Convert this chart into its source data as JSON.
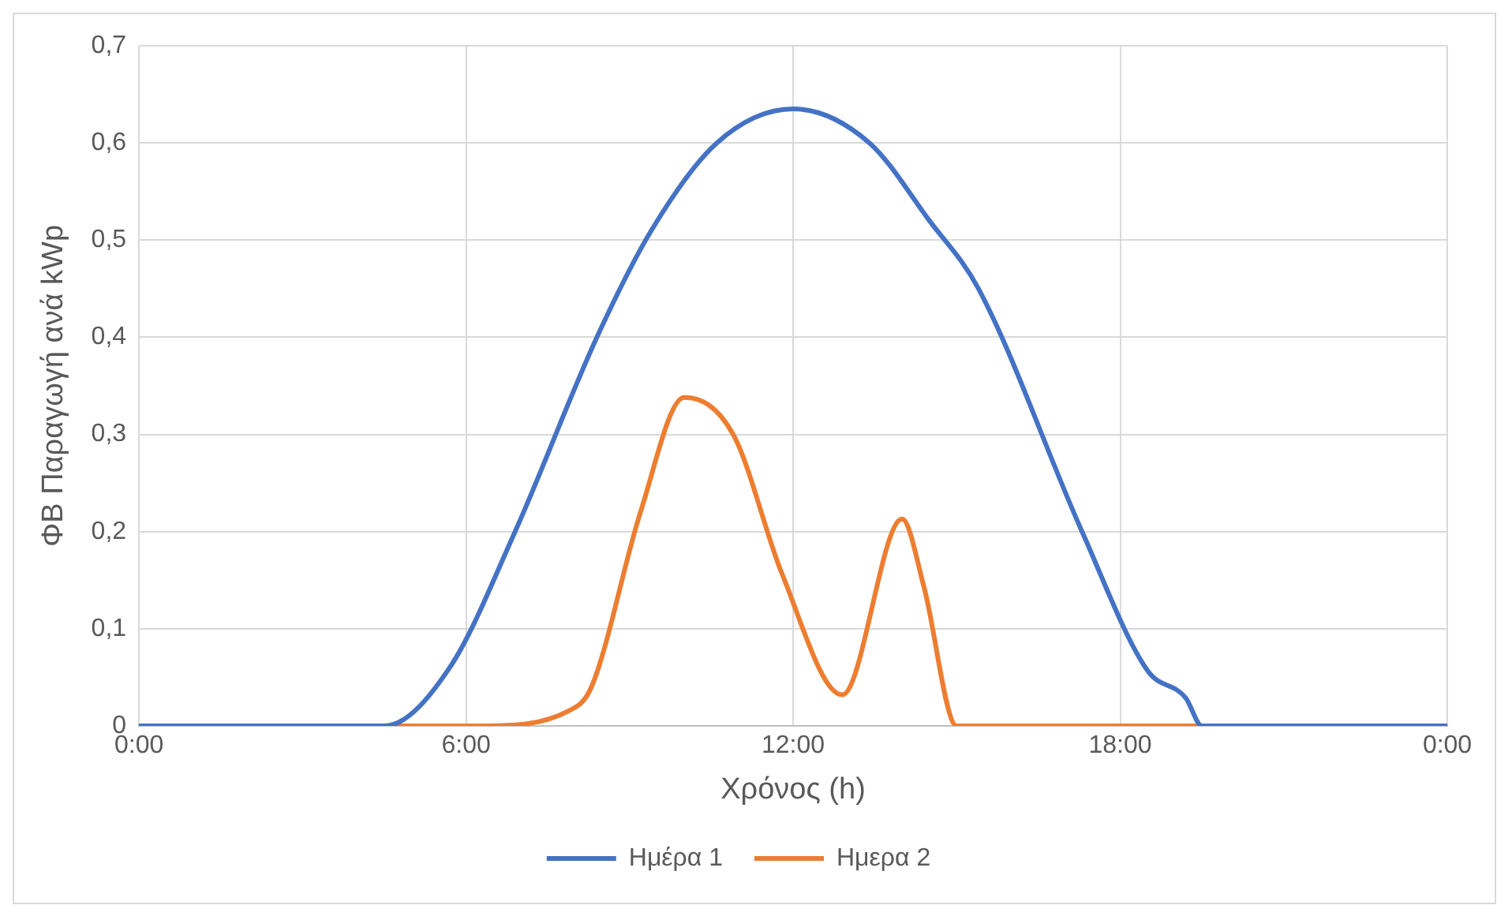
{
  "chart_data": {
    "type": "line",
    "xlabel": "Χρόνος (h)",
    "ylabel": "ΦΒ Παραγωγή ανά kWp",
    "xlim": [
      0,
      24
    ],
    "xticks": [
      {
        "value": 0,
        "label": "0:00"
      },
      {
        "value": 6,
        "label": "6:00"
      },
      {
        "value": 12,
        "label": "12:00"
      },
      {
        "value": 18,
        "label": "18:00"
      },
      {
        "value": 24,
        "label": "0:00"
      }
    ],
    "ylim": [
      0,
      0.7
    ],
    "yticks": [
      {
        "value": 0,
        "label": "0"
      },
      {
        "value": 0.1,
        "label": "0,1"
      },
      {
        "value": 0.2,
        "label": "0,2"
      },
      {
        "value": 0.3,
        "label": "0,3"
      },
      {
        "value": 0.4,
        "label": "0,4"
      },
      {
        "value": 0.5,
        "label": "0,5"
      },
      {
        "value": 0.6,
        "label": "0,6"
      },
      {
        "value": 0.7,
        "label": "0,7"
      }
    ],
    "grid": true,
    "legend": "bottom",
    "marker": "none",
    "line_style": "solid",
    "series": [
      {
        "name": "Ημέρα 1",
        "color": "#4472c4",
        "x": [
          0,
          4.5,
          5.7,
          6.9,
          8.4,
          9.4,
          10.6,
          12,
          13.4,
          14.5,
          15.4,
          17.3,
          18.5,
          19.2,
          19.5,
          24
        ],
        "values": [
          0,
          0,
          0.06,
          0.2,
          0.4,
          0.51,
          0.6,
          0.635,
          0.6,
          0.52,
          0.45,
          0.2,
          0.057,
          0.029,
          0,
          0
        ]
      },
      {
        "name": "Ημερα 2",
        "color": "#ed7d31",
        "x": [
          0,
          6.3,
          7.9,
          8.3,
          9.2,
          10,
          10.9,
          11.8,
          12.9,
          14,
          14.4,
          15,
          24
        ],
        "values": [
          0,
          0,
          0.016,
          0.04,
          0.22,
          0.338,
          0.3,
          0.156,
          0.032,
          0.213,
          0.143,
          0,
          0
        ]
      }
    ]
  }
}
